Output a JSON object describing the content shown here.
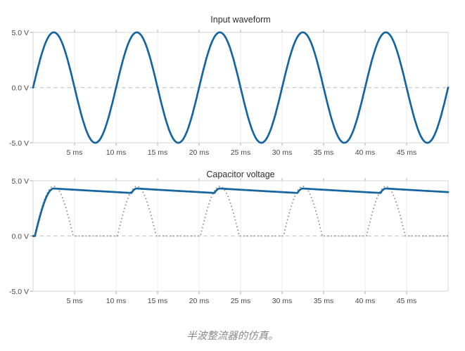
{
  "page": {
    "background": "#ffffff",
    "caption": "半波整流器的仿真。"
  },
  "colors": {
    "trace_blue": "#1565a0",
    "trace_dotted_gray": "#8f8f8f",
    "zero_dash_gray": "#c9c9c9",
    "grid_gray": "#ececec",
    "border_gray": "#d6d6d6",
    "tick_gray": "#a9a9a9"
  },
  "chart_data": [
    {
      "type": "line",
      "title": "Input waveform",
      "xlabel": "",
      "ylabel": "",
      "x_unit": "ms",
      "xlim": [
        0,
        50
      ],
      "ylim": [
        -5,
        5
      ],
      "grid": "vertical",
      "zero_line_dashed": true,
      "legend": "none",
      "x_ticks": [
        5,
        10,
        15,
        20,
        25,
        30,
        35,
        40,
        45
      ],
      "x_tick_labels": [
        "5 ms",
        "10 ms",
        "15 ms",
        "20 ms",
        "25 ms",
        "30 ms",
        "35 ms",
        "40 ms",
        "45 ms"
      ],
      "y_tick_values": [
        5,
        0,
        -5
      ],
      "y_tick_labels": [
        "5.0 V",
        "0.0 V",
        "-5.0 V"
      ],
      "series": [
        {
          "name": "input-sine",
          "model": "sine",
          "style": "solid",
          "color": "#1565a0",
          "amplitude_v": 5,
          "period_ms": 10,
          "phase_deg": 0,
          "key_points": [
            [
              0,
              0
            ],
            [
              2.5,
              5
            ],
            [
              5,
              0
            ],
            [
              7.5,
              -5
            ],
            [
              10,
              0
            ],
            [
              12.5,
              5
            ],
            [
              15,
              0
            ],
            [
              17.5,
              -5
            ],
            [
              20,
              0
            ],
            [
              22.5,
              5
            ],
            [
              25,
              0
            ],
            [
              27.5,
              -5
            ],
            [
              30,
              0
            ],
            [
              32.5,
              5
            ],
            [
              35,
              0
            ],
            [
              37.5,
              -5
            ],
            [
              40,
              0
            ],
            [
              42.5,
              5
            ],
            [
              45,
              0
            ],
            [
              47.5,
              -5
            ],
            [
              50,
              0
            ]
          ]
        }
      ]
    },
    {
      "type": "line",
      "title": "Capacitor voltage",
      "xlabel": "",
      "ylabel": "",
      "x_unit": "ms",
      "xlim": [
        0,
        50
      ],
      "ylim": [
        -5,
        5
      ],
      "grid": "vertical",
      "zero_line_dashed": true,
      "legend": "none",
      "x_ticks": [
        5,
        10,
        15,
        20,
        25,
        30,
        35,
        40,
        45
      ],
      "x_tick_labels": [
        "5 ms",
        "10 ms",
        "15 ms",
        "20 ms",
        "25 ms",
        "30 ms",
        "35 ms",
        "40 ms",
        "45 ms"
      ],
      "y_tick_values": [
        5,
        0,
        -5
      ],
      "y_tick_labels": [
        "5.0 V",
        "0.0 V",
        "-5.0 V"
      ],
      "series": [
        {
          "name": "rectified-input",
          "model": "rectified_sine",
          "style": "dotted",
          "color": "#8f8f8f",
          "amplitude_v": 5,
          "period_ms": 10,
          "diode_drop_v": 0.5,
          "key_points": [
            [
              0,
              0
            ],
            [
              2.5,
              4.5
            ],
            [
              4.9,
              0
            ],
            [
              10.2,
              0
            ],
            [
              12.5,
              4.5
            ],
            [
              14.8,
              0
            ],
            [
              20.2,
              0
            ],
            [
              22.5,
              4.5
            ],
            [
              24.8,
              0
            ],
            [
              30.2,
              0
            ],
            [
              32.5,
              4.5
            ],
            [
              34.8,
              0
            ],
            [
              40.2,
              0
            ],
            [
              42.5,
              4.5
            ],
            [
              44.8,
              0
            ],
            [
              50,
              0
            ]
          ]
        },
        {
          "name": "capacitor-voltage",
          "model": "rc_peak_detector",
          "style": "solid",
          "color": "#1565a0",
          "amplitude_v": 5,
          "period_ms": 10,
          "diode_drop_v": 0.7,
          "tau_ms": 95,
          "key_points": [
            [
              0,
              0
            ],
            [
              2.7,
              4.3
            ],
            [
              11.7,
              3.9
            ],
            [
              13,
              4.3
            ],
            [
              21.7,
              3.9
            ],
            [
              23,
              4.3
            ],
            [
              31.7,
              3.9
            ],
            [
              33,
              4.3
            ],
            [
              41.7,
              3.9
            ],
            [
              43,
              4.3
            ],
            [
              50,
              3.98
            ]
          ]
        }
      ]
    }
  ]
}
